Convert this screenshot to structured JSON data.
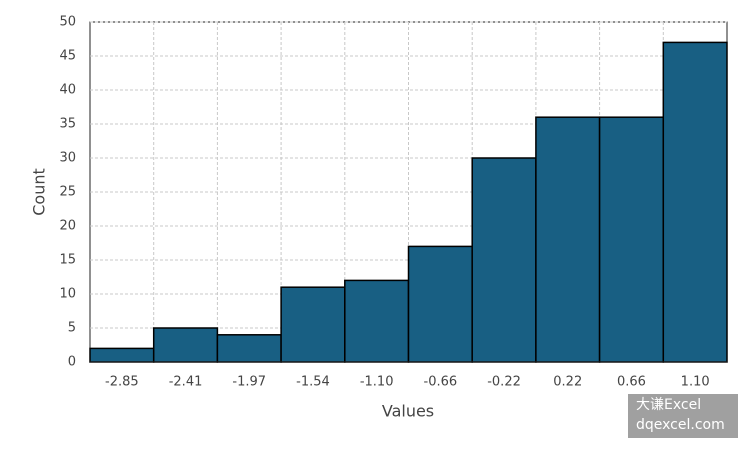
{
  "chart_data": {
    "type": "bar",
    "x_label": "Values",
    "y_label": "Count",
    "categories": [
      "-2.85",
      "-2.41",
      "-1.97",
      "-1.54",
      "-1.10",
      "-0.66",
      "-0.22",
      "0.22",
      "0.66",
      "1.10"
    ],
    "values": [
      2,
      5,
      4,
      11,
      12,
      17,
      30,
      36,
      36,
      47
    ],
    "color": "#185f83",
    "ylim": [
      0,
      50
    ],
    "yticks": [
      0,
      5,
      10,
      15,
      20,
      25,
      30,
      35,
      40,
      45,
      50
    ],
    "grid": true
  },
  "watermark": {
    "line1": "大谦Excel",
    "line2": "dqexcel.com"
  }
}
